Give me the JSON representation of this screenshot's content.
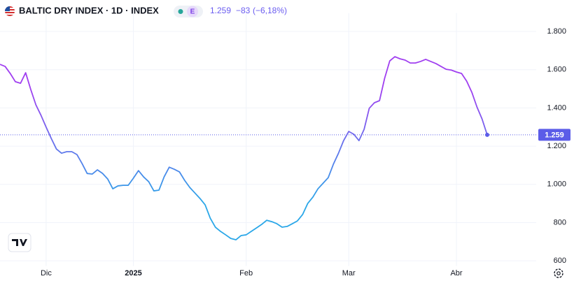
{
  "chart_data": {
    "type": "line",
    "title": "BALTIC DRY INDEX · 1D · INDEX",
    "badge": "E",
    "header_change": "−83",
    "header_change_pct": "(−6,18%)",
    "categories": [
      null,
      null,
      null,
      null,
      null,
      null,
      null,
      null,
      null,
      "Dic",
      null,
      null,
      null,
      null,
      null,
      null,
      null,
      null,
      null,
      null,
      null,
      null,
      null,
      null,
      null,
      null,
      "2025",
      null,
      null,
      null,
      null,
      null,
      null,
      null,
      null,
      null,
      null,
      null,
      null,
      null,
      null,
      null,
      null,
      null,
      null,
      null,
      null,
      null,
      "Feb",
      null,
      null,
      null,
      null,
      null,
      null,
      null,
      null,
      null,
      null,
      null,
      null,
      null,
      null,
      null,
      null,
      null,
      null,
      null,
      "Mar",
      null,
      null,
      null,
      null,
      null,
      null,
      null,
      null,
      null,
      null,
      null,
      null,
      null,
      null,
      null,
      null,
      null,
      null,
      null,
      null,
      "Abr",
      null,
      null,
      null,
      null,
      null,
      null
    ],
    "values": [
      1628,
      1617,
      1580,
      1537,
      1529,
      1584,
      1496,
      1416,
      1361,
      1299,
      1240,
      1185,
      1163,
      1171,
      1171,
      1156,
      1109,
      1057,
      1054,
      1076,
      1057,
      1028,
      977,
      992,
      995,
      995,
      1032,
      1072,
      1039,
      1014,
      966,
      970,
      1039,
      1090,
      1079,
      1065,
      1021,
      984,
      955,
      926,
      893,
      823,
      776,
      754,
      736,
      717,
      710,
      732,
      736,
      754,
      772,
      790,
      812,
      805,
      794,
      776,
      780,
      794,
      809,
      842,
      900,
      933,
      977,
      1006,
      1035,
      1105,
      1163,
      1229,
      1277,
      1262,
      1229,
      1288,
      1398,
      1427,
      1438,
      1555,
      1646,
      1668,
      1657,
      1650,
      1635,
      1635,
      1643,
      1654,
      1643,
      1632,
      1617,
      1602,
      1598,
      1588,
      1580,
      1540,
      1482,
      1405,
      1342,
      1259
    ],
    "value_labels": [
      null,
      null,
      null,
      null,
      null,
      null,
      null,
      null,
      null,
      null,
      null,
      null,
      null,
      null,
      null,
      null,
      null,
      null,
      null,
      null,
      null,
      null,
      null,
      null,
      null,
      null,
      null,
      null,
      null,
      null,
      null,
      null,
      null,
      null,
      null,
      null,
      null,
      null,
      null,
      null,
      null,
      null,
      null,
      null,
      null,
      null,
      null,
      null,
      null,
      null,
      null,
      null,
      null,
      null,
      null,
      null,
      null,
      null,
      null,
      null,
      null,
      null,
      null,
      null,
      null,
      null,
      null,
      null,
      null,
      null,
      null,
      null,
      null,
      null,
      null,
      null,
      null,
      null,
      null,
      null,
      null,
      null,
      null,
      null,
      null,
      null,
      null,
      null,
      null,
      null,
      null,
      null,
      null,
      null,
      null,
      "1.259"
    ],
    "line_colors": [
      "#a03ff0",
      "#2aa7e8"
    ],
    "price_line_color": "#5b5ce8",
    "ylim": [
      580,
      1860
    ],
    "yticks": [
      600,
      800,
      {
        "value": 1000,
        "label": "1.000"
      },
      {
        "value": 1200,
        "label": "1.200"
      },
      {
        "value": 1400,
        "label": "1.400"
      },
      {
        "value": 1600,
        "label": "1.600"
      },
      {
        "value": 1800,
        "label": "1.800"
      }
    ],
    "grid": true
  }
}
